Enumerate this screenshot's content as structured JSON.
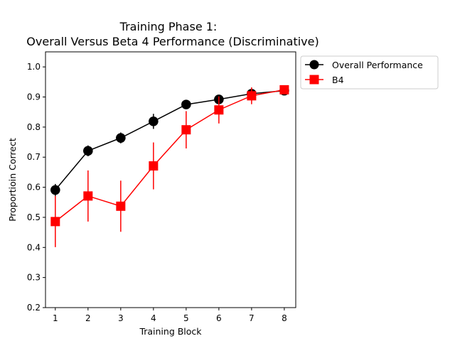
{
  "chart_data": {
    "type": "line",
    "title_line1": "Training Phase 1:",
    "title_line2": "Overall Versus Beta 4 Performance (Discriminative)",
    "xlabel": "Training Block",
    "ylabel": "Proportioin Correct",
    "x": [
      1,
      2,
      3,
      4,
      5,
      6,
      7,
      8
    ],
    "xlim": [
      0.7,
      8.35
    ],
    "ylim": [
      0.2,
      1.05
    ],
    "yticks": [
      0.2,
      0.3,
      0.4,
      0.5,
      0.6,
      0.7,
      0.8,
      0.9,
      1.0
    ],
    "ytick_labels": [
      "0.2",
      "0.3",
      "0.4",
      "0.5",
      "0.6",
      "0.7",
      "0.8",
      "0.9",
      "1.0"
    ],
    "xtick_labels": [
      "1",
      "2",
      "3",
      "4",
      "5",
      "6",
      "7",
      "8"
    ],
    "grid": false,
    "legend_position": "outside-top-right",
    "series": [
      {
        "name": "Overall Performance",
        "color": "#000000",
        "marker": "circle",
        "values": [
          0.591,
          0.721,
          0.764,
          0.819,
          0.875,
          0.892,
          0.911,
          0.921
        ],
        "err": [
          0.02,
          0.018,
          0.018,
          0.025,
          0.014,
          0.011,
          0.01,
          0.01
        ]
      },
      {
        "name": "B4",
        "color": "#ff0000",
        "marker": "square",
        "values": [
          0.486,
          0.571,
          0.537,
          0.671,
          0.791,
          0.857,
          0.904,
          0.924
        ],
        "err": [
          0.085,
          0.085,
          0.085,
          0.078,
          0.062,
          0.045,
          0.028,
          0.01
        ]
      }
    ]
  }
}
